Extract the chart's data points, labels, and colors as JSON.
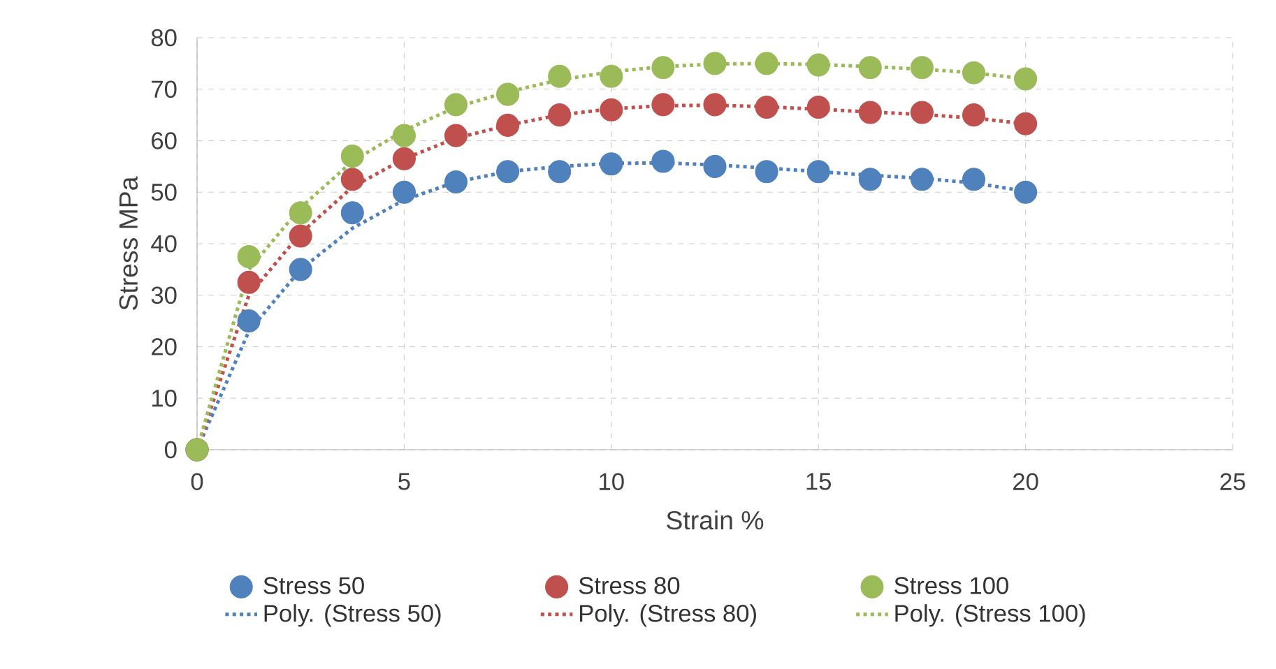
{
  "chart_data": {
    "type": "scatter",
    "xlabel": "Strain %",
    "ylabel": "Stress MPa",
    "xlim": [
      0,
      25
    ],
    "ylim": [
      0,
      80
    ],
    "xticks": [
      0,
      5,
      10,
      15,
      20,
      25
    ],
    "yticks": [
      0,
      10,
      20,
      30,
      40,
      50,
      60,
      70,
      80
    ],
    "grid": true,
    "legend": "bottom",
    "x": [
      0,
      1.25,
      2.5,
      3.75,
      5,
      6.25,
      7.5,
      8.75,
      10,
      11.25,
      12.5,
      13.75,
      15,
      16.25,
      17.5,
      18.75,
      20
    ],
    "series": [
      {
        "name": "Stress 50",
        "marker": "circle",
        "color": "#4f81bd",
        "values": [
          0,
          25,
          35,
          46,
          50,
          52,
          54,
          54,
          55.5,
          56,
          55,
          54,
          54,
          52.5,
          52.5,
          52.5,
          50
        ]
      },
      {
        "name": "Stress 80",
        "marker": "circle",
        "color": "#c0504d",
        "values": [
          0,
          32.5,
          41.5,
          52.5,
          56.5,
          61,
          63,
          65,
          66,
          67,
          67,
          66.5,
          66.5,
          65.5,
          65.5,
          65,
          63.3
        ]
      },
      {
        "name": "Stress 100",
        "marker": "circle",
        "color": "#9bbb59",
        "values": [
          0,
          37.5,
          46,
          57,
          61,
          67,
          69,
          72.5,
          72.5,
          74.2,
          75,
          75,
          74.7,
          74.2,
          74.2,
          73.2,
          72
        ]
      },
      {
        "name": "Poly. (Stress 50)",
        "type": "line",
        "line_style": "dotted",
        "marker": "none",
        "color": "#4f81bd",
        "values": [
          0,
          23,
          35,
          43,
          48.5,
          52,
          54,
          55,
          55.6,
          55.7,
          55.3,
          54.7,
          54,
          53.3,
          52.7,
          51.8,
          50.2
        ]
      },
      {
        "name": "Poly. (Stress 80)",
        "type": "line",
        "line_style": "dotted",
        "marker": "none",
        "color": "#c0504d",
        "values": [
          0,
          30,
          42,
          51,
          56.5,
          60.5,
          63,
          65,
          66.2,
          66.8,
          66.9,
          66.6,
          66.1,
          65.6,
          65.1,
          64.4,
          63.3
        ]
      },
      {
        "name": "Poly. (Stress 100)",
        "type": "line",
        "line_style": "dotted",
        "marker": "none",
        "color": "#9bbb59",
        "values": [
          0,
          35,
          47,
          56,
          62,
          66.5,
          69.5,
          71.8,
          73.4,
          74.4,
          74.9,
          75,
          74.8,
          74.4,
          73.9,
          73.2,
          72
        ]
      }
    ]
  }
}
